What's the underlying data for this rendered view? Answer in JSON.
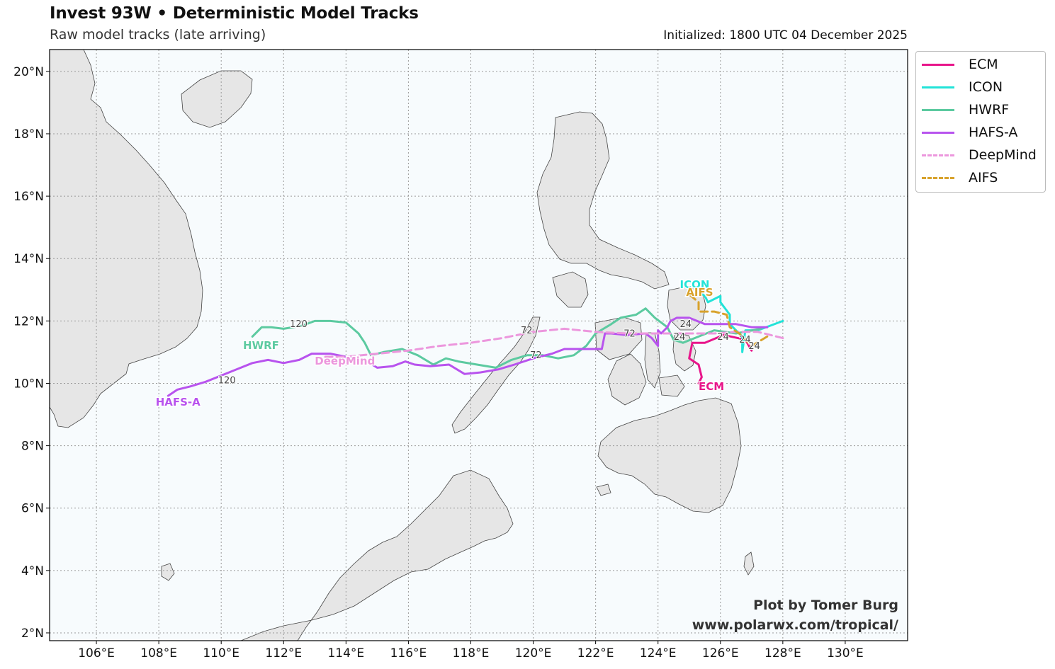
{
  "header": {
    "title": "Invest 93W • Deterministic Model Tracks",
    "subtitle": "Raw model tracks (late arriving)",
    "initialized": "Initialized: 1800 UTC 04 December 2025"
  },
  "credit": {
    "line1": "Plot by Tomer Burg",
    "line2": "www.polarwx.com/tropical/"
  },
  "map": {
    "lon_range": [
      104.5,
      132.0
    ],
    "lat_range": [
      1.75,
      20.7
    ],
    "lon_ticks": [
      106,
      108,
      110,
      112,
      114,
      116,
      118,
      120,
      122,
      124,
      126,
      128,
      130
    ],
    "lon_tick_labels": [
      "106°E",
      "108°E",
      "110°E",
      "112°E",
      "114°E",
      "116°E",
      "118°E",
      "120°E",
      "122°E",
      "124°E",
      "126°E",
      "128°E",
      "130°E"
    ],
    "lat_ticks": [
      2,
      4,
      6,
      8,
      10,
      12,
      14,
      16,
      18,
      20
    ],
    "lat_tick_labels": [
      "2°N",
      "4°N",
      "6°N",
      "8°N",
      "10°N",
      "12°N",
      "14°N",
      "16°N",
      "18°N",
      "20°N"
    ],
    "ocean_color": "#f7fbfd",
    "land_color": "#e6e6e6",
    "coast_color": "#444444",
    "grid": true
  },
  "legend": [
    {
      "name": "ECM",
      "color": "#e8158a",
      "dashed": false
    },
    {
      "name": "ICON",
      "color": "#22e3d8",
      "dashed": false
    },
    {
      "name": "HWRF",
      "color": "#5ccaa0",
      "dashed": false
    },
    {
      "name": "HAFS-A",
      "color": "#b853ee",
      "dashed": false
    },
    {
      "name": "DeepMind",
      "color": "#ec97dd",
      "dashed": true
    },
    {
      "name": "AIFS",
      "color": "#d8a22c",
      "dashed": true
    }
  ],
  "tracks": [
    {
      "name": "ECM",
      "color": "#e8158a",
      "dashed": false,
      "points": [
        [
          127.0,
          11.05
        ],
        [
          126.8,
          11.4
        ],
        [
          126.1,
          11.55
        ],
        [
          125.5,
          11.3
        ],
        [
          125.1,
          11.3
        ],
        [
          125.0,
          10.8
        ],
        [
          125.3,
          10.6
        ],
        [
          125.4,
          10.2
        ],
        [
          125.3,
          10.0
        ]
      ],
      "label": {
        "text": "ECM",
        "lon": 125.3,
        "lat": 9.78
      },
      "hours": []
    },
    {
      "name": "ICON",
      "color": "#22e3d8",
      "dashed": false,
      "points": [
        [
          128.0,
          12.0
        ],
        [
          127.2,
          11.7
        ],
        [
          126.8,
          11.7
        ],
        [
          126.7,
          11.0
        ],
        [
          126.7,
          11.5
        ],
        [
          126.3,
          11.9
        ],
        [
          126.3,
          12.2
        ],
        [
          126.0,
          12.6
        ],
        [
          126.0,
          12.8
        ],
        [
          125.6,
          12.6
        ],
        [
          125.5,
          12.8
        ],
        [
          125.2,
          13.0
        ]
      ],
      "label": {
        "text": "ICON",
        "lon": 124.7,
        "lat": 13.05
      },
      "hours": []
    },
    {
      "name": "HWRF",
      "color": "#5ccaa0",
      "dashed": false,
      "points": [
        [
          127.3,
          11.75
        ],
        [
          126.5,
          11.6
        ],
        [
          125.8,
          11.7
        ],
        [
          125.3,
          11.5
        ],
        [
          124.8,
          11.3
        ],
        [
          124.5,
          11.4
        ],
        [
          124.3,
          11.8
        ],
        [
          123.9,
          12.1
        ],
        [
          123.6,
          12.4
        ],
        [
          123.3,
          12.2
        ],
        [
          122.8,
          12.1
        ],
        [
          122.5,
          11.9
        ],
        [
          122.0,
          11.6
        ],
        [
          121.7,
          11.2
        ],
        [
          121.3,
          10.9
        ],
        [
          120.8,
          10.8
        ],
        [
          120.3,
          10.9
        ],
        [
          119.8,
          10.9
        ],
        [
          119.3,
          10.75
        ],
        [
          118.8,
          10.5
        ],
        [
          118.2,
          10.6
        ],
        [
          117.6,
          10.7
        ],
        [
          117.2,
          10.8
        ],
        [
          116.8,
          10.6
        ],
        [
          116.3,
          10.9
        ],
        [
          115.8,
          11.1
        ],
        [
          115.2,
          11.0
        ],
        [
          114.8,
          10.9
        ],
        [
          114.6,
          11.3
        ],
        [
          114.4,
          11.6
        ],
        [
          114.0,
          11.95
        ],
        [
          113.5,
          12.0
        ],
        [
          113.0,
          12.0
        ],
        [
          112.6,
          11.85
        ],
        [
          112.0,
          11.75
        ],
        [
          111.6,
          11.8
        ],
        [
          111.3,
          11.8
        ],
        [
          111.0,
          11.5
        ]
      ],
      "label": {
        "text": "HWRF",
        "lon": 110.7,
        "lat": 11.1
      },
      "hours": [
        {
          "text": "120",
          "lon": 112.2,
          "lat": 11.8
        }
      ]
    },
    {
      "name": "HAFS-A",
      "color": "#b853ee",
      "dashed": false,
      "points": [
        [
          127.5,
          11.8
        ],
        [
          127.0,
          11.8
        ],
        [
          126.5,
          11.9
        ],
        [
          126.0,
          11.9
        ],
        [
          125.5,
          11.9
        ],
        [
          125.0,
          12.1
        ],
        [
          124.6,
          12.1
        ],
        [
          124.4,
          12.0
        ],
        [
          124.3,
          11.8
        ],
        [
          124.1,
          11.6
        ],
        [
          124.0,
          11.7
        ],
        [
          124.0,
          11.2
        ],
        [
          123.8,
          11.45
        ],
        [
          123.6,
          11.6
        ],
        [
          123.0,
          11.55
        ],
        [
          122.5,
          11.6
        ],
        [
          122.3,
          11.6
        ],
        [
          122.2,
          11.1
        ],
        [
          121.6,
          11.1
        ],
        [
          121.0,
          11.1
        ],
        [
          120.6,
          10.95
        ],
        [
          120.0,
          10.8
        ],
        [
          119.4,
          10.6
        ],
        [
          118.9,
          10.45
        ],
        [
          118.3,
          10.35
        ],
        [
          117.8,
          10.3
        ],
        [
          117.3,
          10.6
        ],
        [
          116.7,
          10.55
        ],
        [
          116.2,
          10.6
        ],
        [
          115.9,
          10.7
        ],
        [
          115.5,
          10.55
        ],
        [
          115.0,
          10.5
        ],
        [
          114.6,
          10.75
        ],
        [
          114.0,
          10.85
        ],
        [
          113.5,
          10.95
        ],
        [
          112.9,
          10.95
        ],
        [
          112.5,
          10.75
        ],
        [
          112.0,
          10.65
        ],
        [
          111.5,
          10.75
        ],
        [
          111.0,
          10.65
        ],
        [
          110.5,
          10.45
        ],
        [
          110.0,
          10.25
        ],
        [
          109.5,
          10.05
        ],
        [
          109.0,
          9.9
        ],
        [
          108.6,
          9.8
        ],
        [
          108.3,
          9.6
        ]
      ],
      "label": {
        "text": "HAFS-A",
        "lon": 107.9,
        "lat": 9.28
      },
      "hours": [
        {
          "text": "120",
          "lon": 109.9,
          "lat": 10.0
        }
      ]
    },
    {
      "name": "DeepMind",
      "color": "#ec97dd",
      "dashed": true,
      "points": [
        [
          128.0,
          11.45
        ],
        [
          127.2,
          11.65
        ],
        [
          126.5,
          11.65
        ],
        [
          125.8,
          11.6
        ],
        [
          125.0,
          11.6
        ],
        [
          124.0,
          11.6
        ],
        [
          123.0,
          11.6
        ],
        [
          122.0,
          11.65
        ],
        [
          121.0,
          11.75
        ],
        [
          120.0,
          11.65
        ],
        [
          119.0,
          11.45
        ],
        [
          118.0,
          11.3
        ],
        [
          117.0,
          11.2
        ],
        [
          116.0,
          11.05
        ],
        [
          115.0,
          10.95
        ],
        [
          114.0,
          10.85
        ],
        [
          113.3,
          10.85
        ]
      ],
      "label": {
        "text": "DeepMind",
        "lon": 113.0,
        "lat": 10.6
      },
      "hours": [
        {
          "text": "72",
          "lon": 119.6,
          "lat": 11.6
        }
      ]
    },
    {
      "name": "AIFS",
      "color": "#d8a22c",
      "dashed": true,
      "points": [
        [
          127.5,
          11.5
        ],
        [
          127.0,
          11.2
        ],
        [
          126.8,
          11.4
        ],
        [
          126.6,
          11.6
        ],
        [
          126.3,
          11.8
        ],
        [
          126.2,
          12.2
        ],
        [
          125.8,
          12.3
        ],
        [
          125.3,
          12.3
        ],
        [
          125.3,
          12.6
        ],
        [
          125.0,
          12.85
        ]
      ],
      "label": {
        "text": "AIFS",
        "lon": 124.9,
        "lat": 12.8
      },
      "hours": []
    }
  ],
  "hour_labels": [
    {
      "text": "24",
      "lon": 125.9,
      "lat": 11.4
    },
    {
      "text": "24",
      "lon": 126.6,
      "lat": 11.3
    },
    {
      "text": "24",
      "lon": 126.9,
      "lat": 11.1
    },
    {
      "text": "24",
      "lon": 124.5,
      "lat": 11.4
    },
    {
      "text": "24",
      "lon": 124.7,
      "lat": 11.8
    },
    {
      "text": "72",
      "lon": 119.9,
      "lat": 10.8
    },
    {
      "text": "72",
      "lon": 122.9,
      "lat": 11.5
    }
  ]
}
